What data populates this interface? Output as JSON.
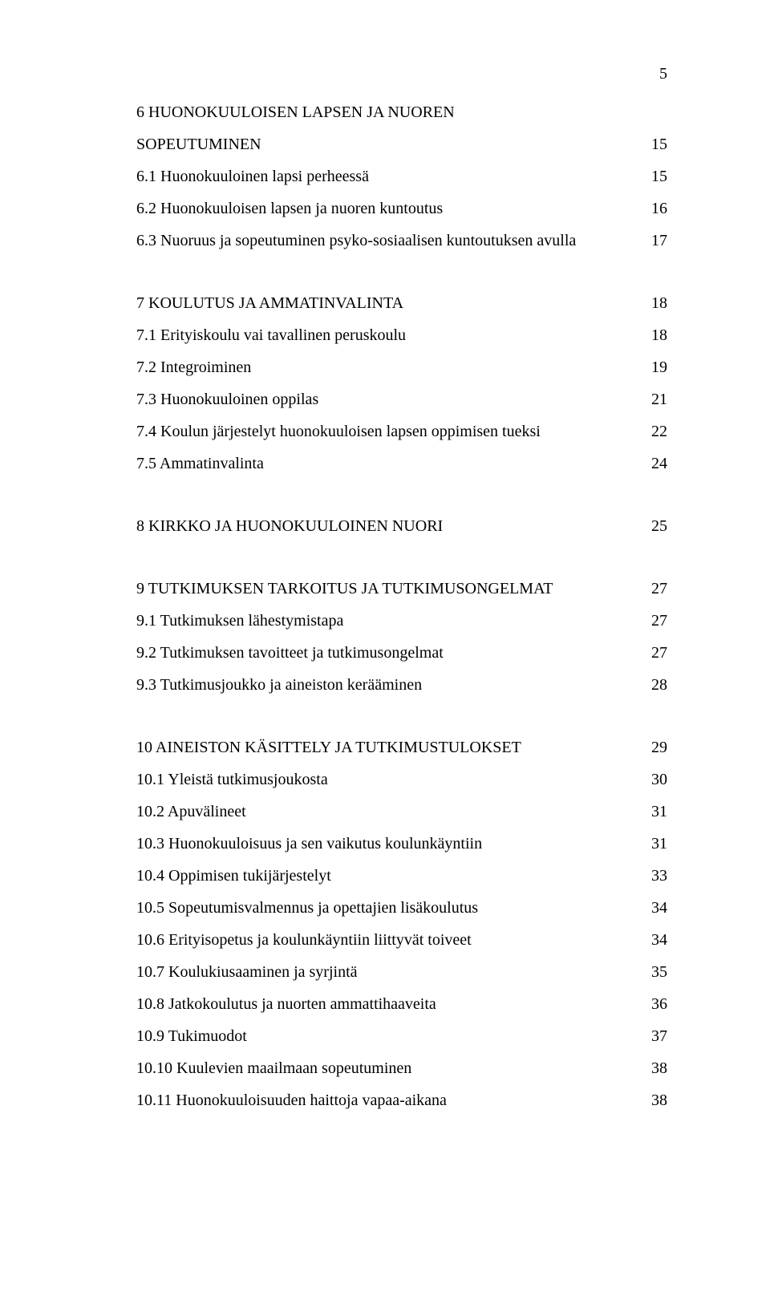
{
  "page_number_top": "5",
  "sections": [
    {
      "head": {
        "label": "6 HUONOKUULOISEN LAPSEN JA NUOREN",
        "page": ""
      },
      "head2": {
        "label": "SOPEUTUMINEN",
        "page": "15"
      },
      "items": [
        {
          "label": "6.1 Huonokuuloinen lapsi perheessä",
          "page": "15"
        },
        {
          "label": "6.2 Huonokuuloisen lapsen ja nuoren kuntoutus",
          "page": "16"
        },
        {
          "label": "6.3 Nuoruus ja sopeutuminen psyko-sosiaalisen kuntoutuksen avulla",
          "page": "17"
        }
      ]
    },
    {
      "head": {
        "label": "7 KOULUTUS JA AMMATINVALINTA",
        "page": "18"
      },
      "items": [
        {
          "label": "7.1 Erityiskoulu vai tavallinen peruskoulu",
          "page": "18"
        },
        {
          "label": "7.2 Integroiminen",
          "page": "19"
        },
        {
          "label": "7.3 Huonokuuloinen oppilas",
          "page": "21"
        },
        {
          "label": "7.4 Koulun järjestelyt huonokuuloisen lapsen oppimisen tueksi",
          "page": "22"
        },
        {
          "label": "7.5 Ammatinvalinta",
          "page": "24"
        }
      ]
    },
    {
      "head": {
        "label": "8 KIRKKO JA HUONOKUULOINEN NUORI",
        "page": "25"
      },
      "items": []
    },
    {
      "head": {
        "label": "9 TUTKIMUKSEN TARKOITUS JA TUTKIMUSONGELMAT",
        "page": "27"
      },
      "items": [
        {
          "label": "9.1 Tutkimuksen lähestymistapa",
          "page": "27"
        },
        {
          "label": "9.2 Tutkimuksen tavoitteet ja tutkimusongelmat",
          "page": "27"
        },
        {
          "label": "9.3 Tutkimusjoukko ja aineiston kerääminen",
          "page": "28"
        }
      ]
    },
    {
      "head": {
        "label": "10 AINEISTON KÄSITTELY JA TUTKIMUSTULOKSET",
        "page": "29"
      },
      "items": [
        {
          "label": "10.1 Yleistä tutkimusjoukosta",
          "page": "30"
        },
        {
          "label": "10.2 Apuvälineet",
          "page": "31"
        },
        {
          "label": "10.3 Huonokuuloisuus ja sen vaikutus koulunkäyntiin",
          "page": "31"
        },
        {
          "label": "10.4 Oppimisen tukijärjestelyt",
          "page": "33"
        },
        {
          "label": "10.5 Sopeutumisvalmennus ja opettajien lisäkoulutus",
          "page": "34"
        },
        {
          "label": "10.6 Erityisopetus ja koulunkäyntiin liittyvät toiveet",
          "page": "34"
        },
        {
          "label": "10.7 Koulukiusaaminen ja syrjintä",
          "page": "35"
        },
        {
          "label": "10.8 Jatkokoulutus ja nuorten ammattihaaveita",
          "page": "36"
        },
        {
          "label": "10.9 Tukimuodot",
          "page": "37"
        },
        {
          "label": "10.10 Kuulevien maailmaan sopeutuminen",
          "page": "38"
        },
        {
          "label": "10.11 Huonokuuloisuuden haittoja vapaa-aikana",
          "page": "38"
        }
      ]
    }
  ]
}
